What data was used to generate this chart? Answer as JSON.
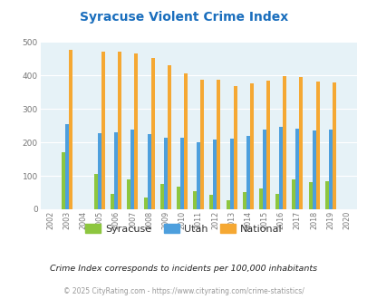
{
  "title": "Syracuse Violent Crime Index",
  "years": [
    2002,
    2003,
    2004,
    2005,
    2006,
    2007,
    2008,
    2009,
    2010,
    2011,
    2012,
    2013,
    2014,
    2015,
    2016,
    2017,
    2018,
    2019,
    2020
  ],
  "syracuse": [
    0,
    170,
    0,
    105,
    45,
    90,
    35,
    77,
    67,
    55,
    43,
    27,
    52,
    62,
    47,
    90,
    80,
    85,
    0
  ],
  "utah": [
    0,
    253,
    0,
    228,
    229,
    238,
    225,
    215,
    215,
    200,
    208,
    211,
    218,
    238,
    245,
    241,
    235,
    237,
    0
  ],
  "national": [
    0,
    475,
    0,
    470,
    472,
    466,
    453,
    430,
    405,
    387,
    387,
    367,
    376,
    383,
    398,
    394,
    381,
    379,
    0
  ],
  "colors": {
    "syracuse": "#8dc63f",
    "utah": "#4d9fdd",
    "national": "#f5a833"
  },
  "bg_color": "#e6f2f7",
  "ylim": [
    0,
    500
  ],
  "yticks": [
    0,
    100,
    200,
    300,
    400,
    500
  ],
  "grid_color": "#ffffff",
  "subtitle": "Crime Index corresponds to incidents per 100,000 inhabitants",
  "footer": "© 2025 CityRating.com - https://www.cityrating.com/crime-statistics/",
  "title_color": "#1a6ebd",
  "subtitle_color": "#222222",
  "footer_color": "#999999"
}
